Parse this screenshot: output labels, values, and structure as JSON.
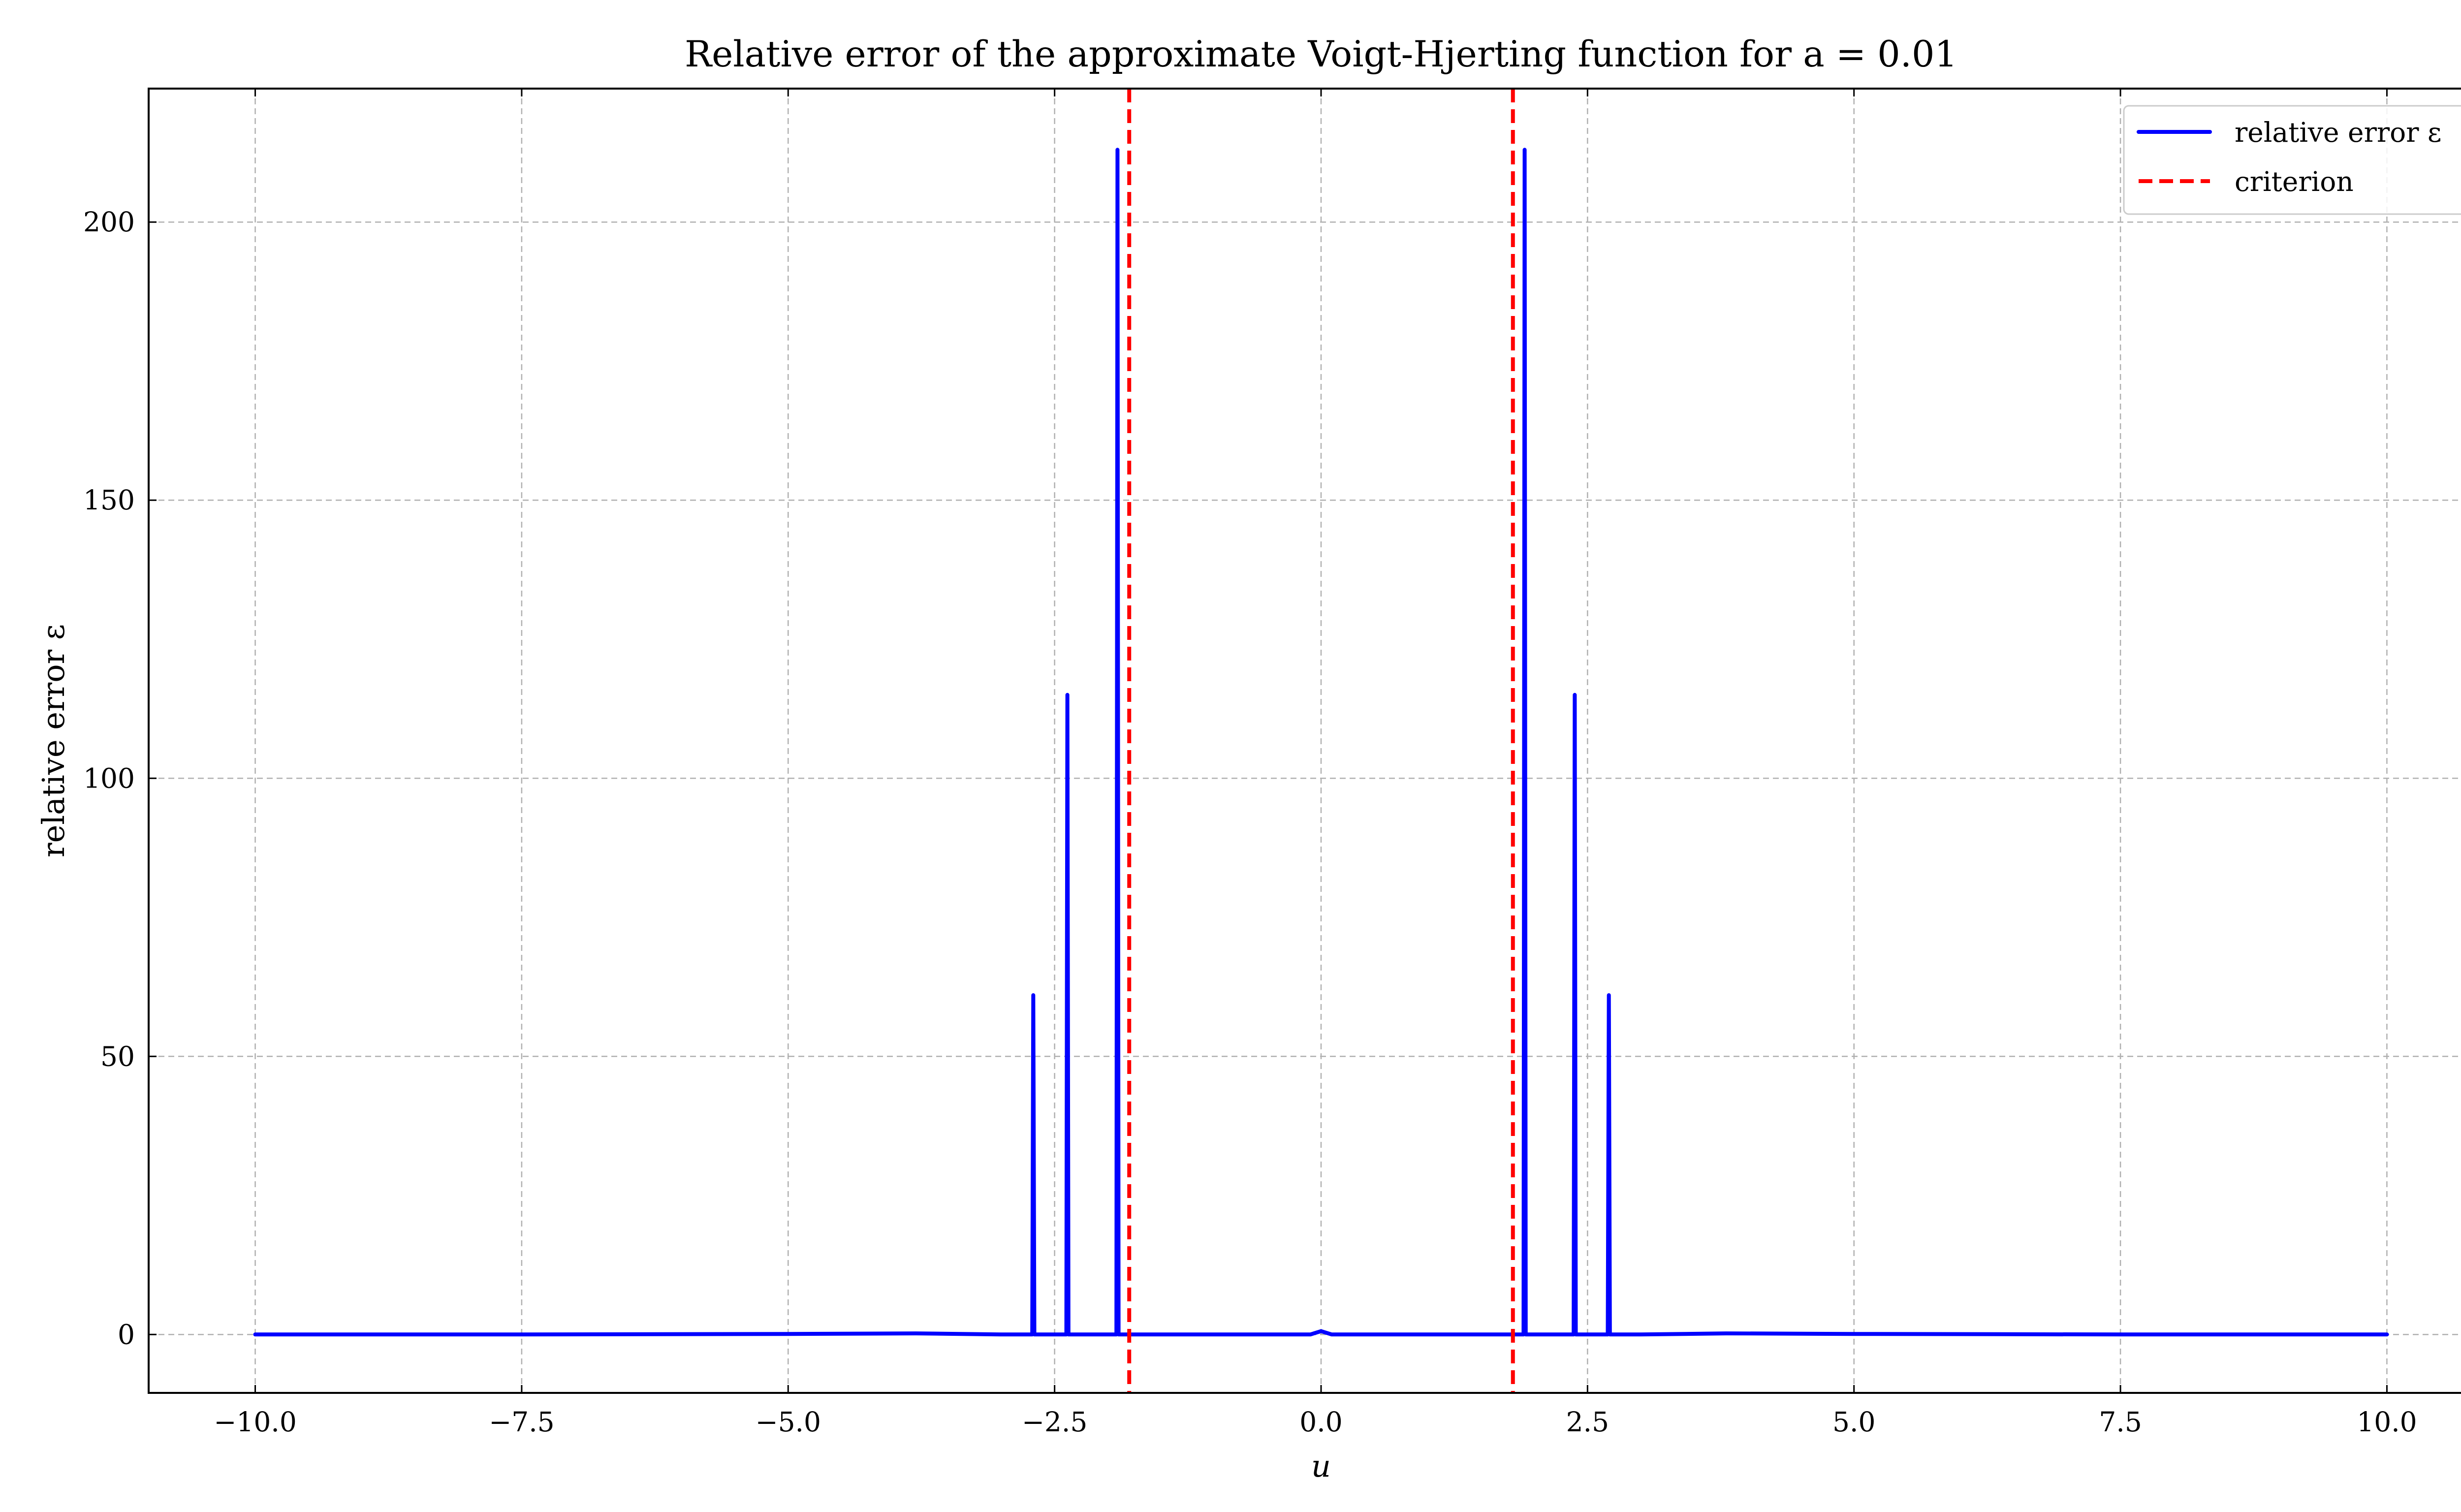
{
  "chart_data": {
    "type": "line",
    "title": "Relative error of the approximate Voigt-Hjerting function for a = 0.01",
    "xlabel": "u",
    "ylabel": "relative error ε",
    "xlim": [
      -11.0,
      11.0
    ],
    "ylim": [
      -10.5,
      224
    ],
    "xticks": [
      -10.0,
      -7.5,
      -5.0,
      -2.5,
      0.0,
      2.5,
      5.0,
      7.5,
      10.0
    ],
    "xtick_labels": [
      "−10.0",
      "−7.5",
      "−5.0",
      "−2.5",
      "0.0",
      "2.5",
      "5.0",
      "7.5",
      "10.0"
    ],
    "yticks": [
      0,
      50,
      100,
      150,
      200
    ],
    "ytick_labels": [
      "0",
      "50",
      "100",
      "150",
      "200"
    ],
    "grid": true,
    "legend_position": "top-right",
    "colors": {
      "relative_error": "#0000ff",
      "criterion": "#ff0000"
    },
    "series": [
      {
        "name": "relative error ε",
        "style": "solid",
        "x": [
          -10.0,
          -7.5,
          -5.0,
          -3.8,
          -3.0,
          -2.72,
          -2.71,
          -2.7,
          -2.69,
          -2.68,
          -2.4,
          -2.39,
          -2.38,
          -2.37,
          -2.36,
          -1.93,
          -1.92,
          -1.91,
          -1.9,
          -1.89,
          -0.1,
          0.0,
          0.1,
          1.89,
          1.9,
          1.91,
          1.92,
          1.93,
          2.36,
          2.37,
          2.38,
          2.39,
          2.4,
          2.68,
          2.69,
          2.7,
          2.71,
          2.72,
          3.0,
          3.8,
          5.0,
          7.5,
          10.0
        ],
        "y": [
          0,
          0,
          0.1,
          0.2,
          0,
          0,
          0,
          61,
          0,
          0,
          0,
          0,
          115,
          0,
          0,
          0,
          0,
          213,
          0,
          0,
          0,
          0.6,
          0,
          0,
          0,
          213,
          0,
          0,
          0,
          0,
          115,
          0,
          0,
          0,
          0,
          61,
          0,
          0,
          0,
          0.2,
          0.1,
          0,
          0
        ]
      },
      {
        "name": "criterion",
        "style": "dashed",
        "vlines": [
          -1.8,
          1.8
        ]
      }
    ]
  }
}
